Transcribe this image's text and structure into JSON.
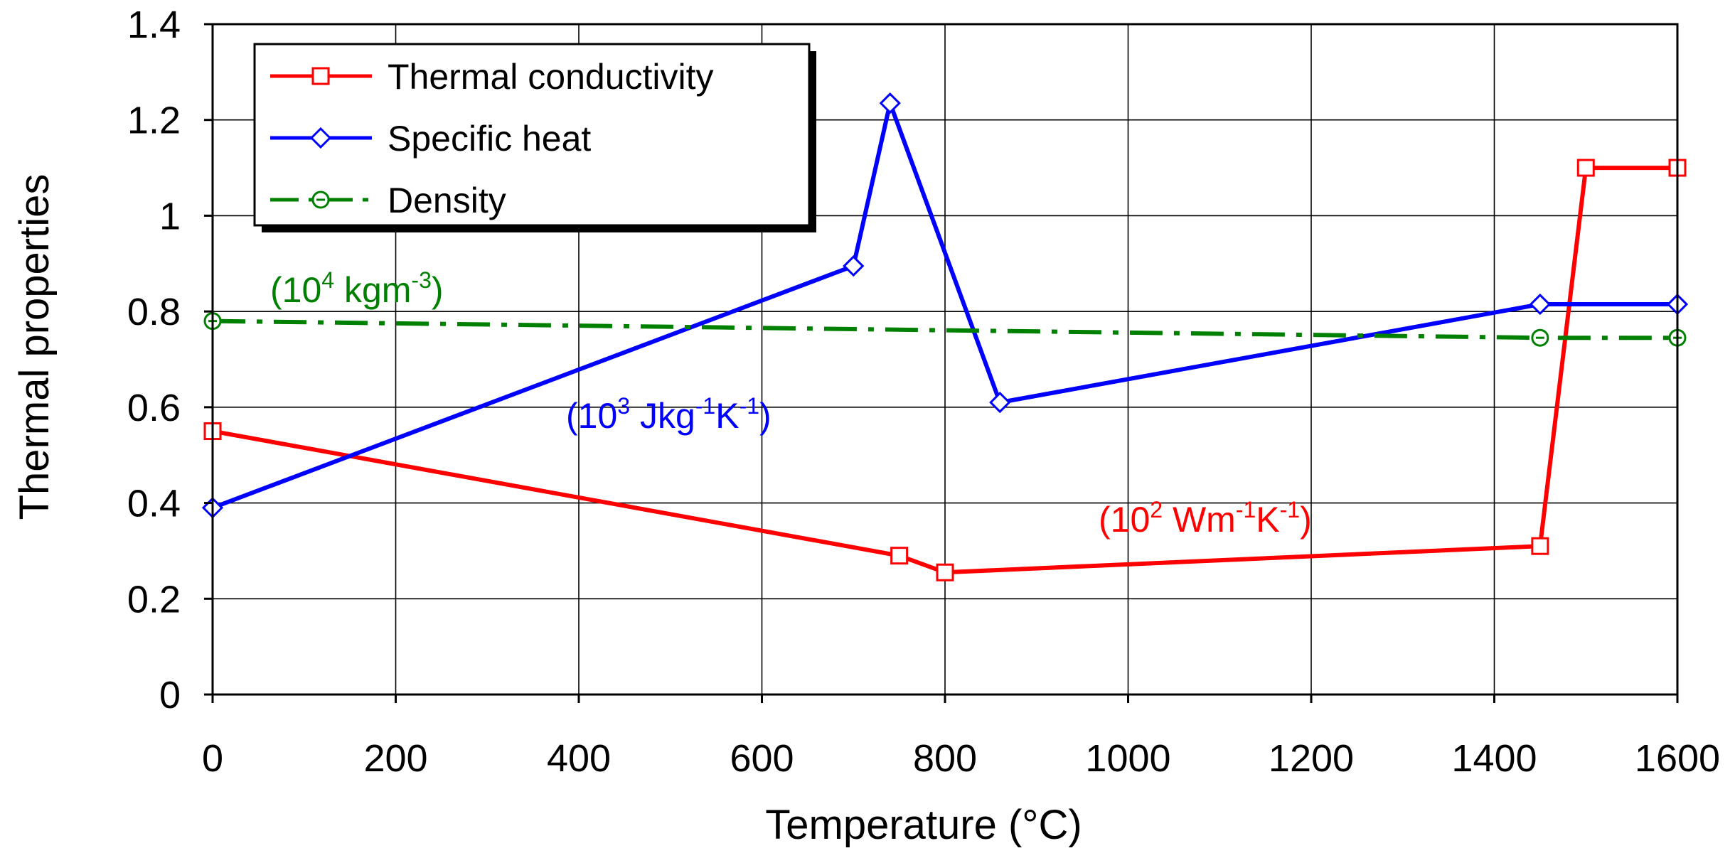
{
  "chart_data": {
    "type": "line",
    "title": "",
    "xlabel": "Temperature (°C)",
    "ylabel": "Thermal properties",
    "xlim": [
      0,
      1600
    ],
    "ylim": [
      0,
      1.4
    ],
    "x_ticks": [
      0,
      200,
      400,
      600,
      800,
      1000,
      1200,
      1400,
      1600
    ],
    "x_tick_labels": [
      "0",
      "200",
      "400",
      "600",
      "800",
      "1000",
      "1200",
      "1400",
      "1600"
    ],
    "y_ticks": [
      0,
      0.2,
      0.4,
      0.6,
      0.8,
      1.0,
      1.2,
      1.4
    ],
    "y_tick_labels": [
      "0",
      "0.2",
      "0.4",
      "0.6",
      "0.8",
      "1",
      "1.2",
      "1.4"
    ],
    "grid": true,
    "legend_position": "top-left",
    "series": [
      {
        "name": "Thermal conductivity",
        "color": "#ff0000",
        "marker": "square",
        "line_style": "solid",
        "x": [
          0,
          750,
          800,
          1450,
          1500,
          1600
        ],
        "values": [
          0.55,
          0.29,
          0.255,
          0.31,
          1.1,
          1.1
        ],
        "unit_base": "(10",
        "unit_exp": "2",
        "unit_rest": [
          {
            "t": " Wm",
            "s": false
          },
          {
            "t": "-1",
            "s": true
          },
          {
            "t": "K",
            "s": false
          },
          {
            "t": "-1",
            "s": true
          },
          {
            "t": ")",
            "s": false
          }
        ]
      },
      {
        "name": "Specific heat",
        "color": "#0000ff",
        "marker": "diamond",
        "line_style": "solid",
        "x": [
          0,
          700,
          740,
          860,
          1450,
          1600
        ],
        "values": [
          0.39,
          0.895,
          1.235,
          0.61,
          0.815,
          0.815
        ],
        "unit_base": "(10",
        "unit_exp": "3",
        "unit_rest": [
          {
            "t": " Jkg",
            "s": false
          },
          {
            "t": "-1",
            "s": true
          },
          {
            "t": "K",
            "s": false
          },
          {
            "t": "-1",
            "s": true
          },
          {
            "t": ")",
            "s": false
          }
        ]
      },
      {
        "name": "Density",
        "color": "#008000",
        "marker": "circle",
        "line_style": "dash-dot",
        "x": [
          0,
          1450,
          1600
        ],
        "values": [
          0.78,
          0.745,
          0.745
        ],
        "unit_base": "(10",
        "unit_exp": "4",
        "unit_rest": [
          {
            "t": " kgm",
            "s": false
          },
          {
            "t": "-3",
            "s": true
          },
          {
            "t": ")",
            "s": false
          }
        ]
      }
    ]
  }
}
